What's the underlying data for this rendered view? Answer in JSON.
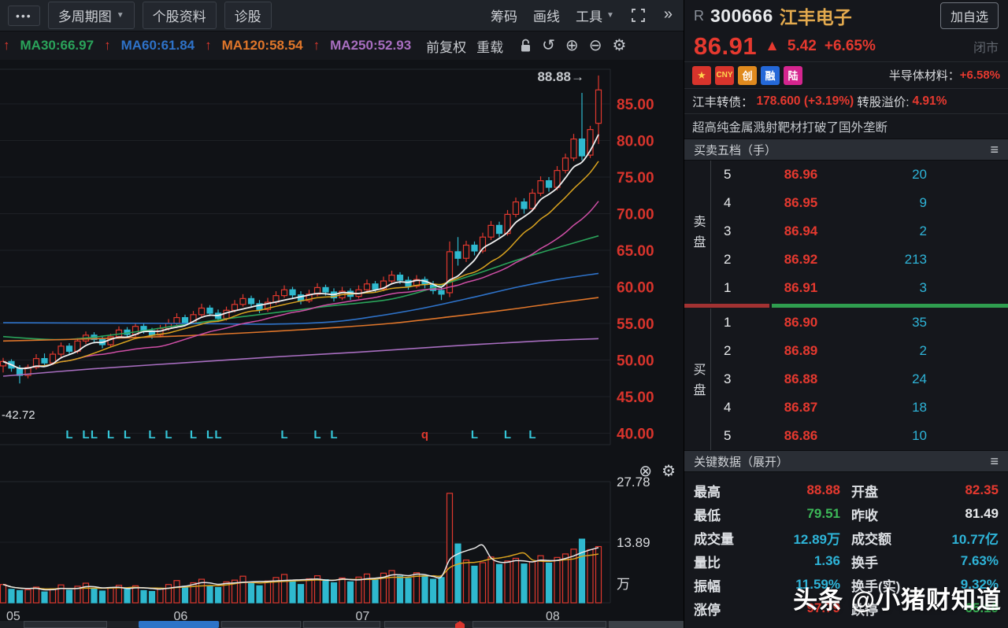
{
  "icons": {
    "dots": "•••",
    "caret": "▼",
    "chevrons": "»",
    "undo": "↺",
    "plus": "⊕",
    "minus": "⊖",
    "gear": "⚙",
    "close_circle": "⊗",
    "hamburger": "≡",
    "up_arrow": "↑",
    "tri_up": "▲",
    "star": "★"
  },
  "toolbar": {
    "menu_dots": "•••",
    "tabs": [
      {
        "label": "多周期图",
        "caret": true
      },
      {
        "label": "个股资料",
        "caret": false
      },
      {
        "label": "诊股",
        "caret": false
      }
    ],
    "right_tools": [
      {
        "label": "筹码",
        "caret": false
      },
      {
        "label": "画线",
        "caret": false
      },
      {
        "label": "工具",
        "caret": true
      }
    ]
  },
  "ma_bar": {
    "leading_arrow": "↑",
    "items": [
      {
        "label": "MA30:66.97",
        "color": "#2aa35a",
        "arrow": true
      },
      {
        "label": "MA60:61.84",
        "color": "#2e72c8",
        "arrow": true
      },
      {
        "label": "MA120:58.54",
        "color": "#e0762a",
        "arrow": true
      },
      {
        "label": "MA250:52.93",
        "color": "#a86ec0",
        "arrow": false
      }
    ],
    "buttons": [
      "前复权",
      "重载"
    ]
  },
  "quote": {
    "market_flag": "R",
    "code": "300666",
    "name": "江丰电子",
    "add_watchlist": "加自选",
    "price": "86.91",
    "change": "5.42",
    "change_pct": "+6.65%",
    "market_status": "闭市",
    "badges": [
      {
        "text": "★",
        "bg": "#d8342c",
        "fg": "#ffd34d"
      },
      {
        "text": "CNY",
        "bg": "#d8342c",
        "fg": "#ffd34d"
      },
      {
        "text": "创",
        "bg": "#e08a1e",
        "fg": "#ffffff"
      },
      {
        "text": "融",
        "bg": "#2468d8",
        "fg": "#ffffff"
      },
      {
        "text": "陆",
        "bg": "#d5258f",
        "fg": "#ffffff"
      }
    ],
    "sector_label": "半导体材料：",
    "sector_change": "+6.58%",
    "bond_label": "江丰转债：",
    "bond_value": "178.600 (+3.19%)",
    "premium_label": "转股溢价:",
    "premium_value": "4.91%",
    "news": "超高纯金属溅射靶材打破了国外垄断"
  },
  "order_book": {
    "title": "买卖五档（手）",
    "sell_label": "卖盘",
    "buy_label": "买盘",
    "sell": [
      {
        "level": "5",
        "price": "86.96",
        "qty": "20"
      },
      {
        "level": "4",
        "price": "86.95",
        "qty": "9"
      },
      {
        "level": "3",
        "price": "86.94",
        "qty": "2"
      },
      {
        "level": "2",
        "price": "86.92",
        "qty": "213"
      },
      {
        "level": "1",
        "price": "86.91",
        "qty": "3"
      }
    ],
    "buy": [
      {
        "level": "1",
        "price": "86.90",
        "qty": "35"
      },
      {
        "level": "2",
        "price": "86.89",
        "qty": "2"
      },
      {
        "level": "3",
        "price": "86.88",
        "qty": "24"
      },
      {
        "level": "4",
        "price": "86.87",
        "qty": "18"
      },
      {
        "level": "5",
        "price": "86.86",
        "qty": "10"
      }
    ],
    "depth": {
      "red_pct": 26.5,
      "green_pct": 73.5
    }
  },
  "key_data": {
    "title": "关键数据（展开）",
    "rows": [
      [
        {
          "label": "最高",
          "value": "88.88",
          "color": "red"
        },
        {
          "label": "开盘",
          "value": "82.35",
          "color": "red"
        }
      ],
      [
        {
          "label": "最低",
          "value": "79.51",
          "color": "green"
        },
        {
          "label": "昨收",
          "value": "81.49",
          "color": "white"
        }
      ],
      [
        {
          "label": "成交量",
          "value": "12.89万",
          "color": "cyan"
        },
        {
          "label": "成交额",
          "value": "10.77亿",
          "color": "cyan"
        }
      ],
      [
        {
          "label": "量比",
          "value": "1.36",
          "color": "cyan"
        },
        {
          "label": "换手",
          "value": "7.63%",
          "color": "cyan"
        }
      ],
      [
        {
          "label": "振幅",
          "value": "11.59%",
          "color": "cyan"
        },
        {
          "label": "换手(实)",
          "value": "9.32%",
          "color": "cyan"
        }
      ],
      [
        {
          "label": "涨停",
          "value": "97.79",
          "color": "red"
        },
        {
          "label": "跌停",
          "value": "65.19",
          "color": "green"
        }
      ]
    ]
  },
  "watermark": "头条 @小猪财知道",
  "chart_data": {
    "type": "candlestick",
    "title": "江丰电子 300666 日K线",
    "colors": {
      "up": "#e0382e",
      "down": "#2fb9cf"
    },
    "price_axis": {
      "ticks": [
        85,
        80,
        75,
        70,
        65,
        60,
        55,
        50,
        45,
        40
      ]
    },
    "high_annotation": "88.88→",
    "left_annotation": "-42.72",
    "months": [
      {
        "label": "05",
        "index": 0
      },
      {
        "label": "06",
        "index": 21
      },
      {
        "label": "07",
        "index": 43
      },
      {
        "label": "08",
        "index": 66
      }
    ],
    "candles": [
      [
        49.2,
        50.3,
        48.3,
        49.8,
        4.2
      ],
      [
        49.8,
        50.1,
        48.4,
        48.9,
        3.1
      ],
      [
        48.9,
        49.3,
        46.8,
        47.9,
        2.8
      ],
      [
        47.9,
        49.4,
        47.5,
        49.0,
        3.0
      ],
      [
        49.0,
        50.8,
        48.7,
        50.2,
        3.6
      ],
      [
        50.2,
        50.9,
        49.2,
        49.6,
        2.5
      ],
      [
        49.6,
        51.2,
        49.3,
        50.8,
        3.2
      ],
      [
        50.8,
        52.4,
        50.4,
        51.9,
        4.1
      ],
      [
        51.9,
        52.3,
        50.7,
        51.2,
        2.9
      ],
      [
        51.2,
        53.0,
        50.9,
        52.6,
        3.8
      ],
      [
        52.6,
        53.9,
        52.2,
        53.4,
        4.5
      ],
      [
        53.4,
        53.8,
        52.3,
        52.8,
        3.2
      ],
      [
        52.8,
        53.3,
        51.6,
        52.1,
        2.7
      ],
      [
        52.1,
        53.6,
        51.8,
        53.2,
        3.4
      ],
      [
        53.2,
        54.6,
        52.9,
        54.1,
        4.0
      ],
      [
        54.1,
        54.5,
        53.1,
        53.5,
        3.1
      ],
      [
        53.5,
        55.0,
        53.2,
        54.6,
        3.9
      ],
      [
        54.6,
        55.1,
        53.6,
        54.0,
        2.8
      ],
      [
        54.0,
        54.4,
        52.9,
        53.4,
        2.6
      ],
      [
        53.4,
        54.8,
        53.1,
        54.3,
        3.3
      ],
      [
        54.3,
        55.6,
        54.0,
        55.0,
        4.2
      ],
      [
        55.0,
        56.4,
        54.7,
        55.8,
        5.1
      ],
      [
        55.8,
        56.2,
        54.7,
        55.1,
        3.8
      ],
      [
        55.1,
        56.7,
        54.9,
        56.2,
        4.6
      ],
      [
        56.2,
        57.7,
        55.9,
        57.1,
        5.4
      ],
      [
        57.1,
        57.5,
        56.0,
        56.4,
        3.9
      ],
      [
        56.4,
        56.9,
        55.2,
        55.7,
        3.5
      ],
      [
        55.7,
        57.3,
        55.4,
        56.8,
        4.8
      ],
      [
        56.8,
        58.2,
        56.5,
        57.6,
        5.2
      ],
      [
        57.6,
        59.0,
        57.3,
        58.4,
        6.1
      ],
      [
        58.4,
        58.8,
        57.2,
        57.7,
        4.4
      ],
      [
        57.7,
        58.2,
        56.4,
        56.9,
        3.9
      ],
      [
        56.9,
        58.5,
        56.6,
        57.9,
        5.0
      ],
      [
        57.9,
        59.4,
        57.6,
        58.8,
        5.8
      ],
      [
        58.8,
        60.2,
        58.5,
        59.6,
        6.5
      ],
      [
        59.6,
        60.0,
        58.4,
        58.9,
        4.9
      ],
      [
        58.9,
        59.4,
        57.6,
        58.1,
        4.2
      ],
      [
        58.1,
        59.6,
        57.8,
        59.0,
        5.5
      ],
      [
        59.0,
        60.5,
        58.7,
        59.9,
        6.2
      ],
      [
        59.9,
        60.3,
        58.8,
        59.3,
        5.3
      ],
      [
        59.3,
        59.8,
        58.0,
        58.5,
        4.6
      ],
      [
        58.5,
        60.0,
        58.2,
        59.4,
        5.7
      ],
      [
        59.4,
        59.8,
        58.2,
        58.7,
        4.8
      ],
      [
        58.7,
        60.2,
        58.4,
        59.6,
        5.9
      ],
      [
        59.6,
        61.0,
        59.3,
        60.4,
        6.6
      ],
      [
        60.4,
        60.8,
        59.2,
        59.7,
        5.2
      ],
      [
        59.7,
        61.4,
        59.4,
        60.8,
        6.8
      ],
      [
        60.8,
        62.2,
        60.5,
        61.6,
        7.4
      ],
      [
        61.6,
        62.0,
        60.4,
        60.9,
        6.1
      ],
      [
        60.9,
        61.4,
        59.6,
        60.1,
        5.6
      ],
      [
        60.1,
        61.6,
        59.8,
        61.0,
        6.9
      ],
      [
        61.0,
        61.4,
        59.8,
        60.3,
        6.2
      ],
      [
        60.3,
        60.8,
        59.0,
        59.5,
        5.4
      ],
      [
        59.5,
        60.0,
        58.2,
        59.0,
        5.8
      ],
      [
        59.2,
        66.2,
        58.6,
        64.8,
        25.1
      ],
      [
        64.8,
        66.8,
        62.9,
        63.9,
        13.5
      ],
      [
        63.9,
        66.3,
        63.4,
        65.7,
        9.8
      ],
      [
        65.7,
        66.2,
        64.3,
        64.9,
        8.4
      ],
      [
        64.9,
        67.4,
        64.6,
        66.8,
        9.2
      ],
      [
        66.8,
        69.0,
        66.4,
        68.4,
        10.5
      ],
      [
        68.4,
        68.9,
        66.8,
        67.3,
        8.8
      ],
      [
        67.3,
        70.5,
        67.0,
        69.9,
        9.6
      ],
      [
        69.9,
        72.2,
        69.5,
        71.6,
        10.2
      ],
      [
        71.6,
        72.1,
        70.0,
        70.7,
        8.9
      ],
      [
        70.7,
        73.4,
        70.3,
        72.8,
        9.4
      ],
      [
        72.8,
        75.1,
        72.4,
        74.5,
        10.8
      ],
      [
        74.5,
        75.0,
        73.0,
        73.6,
        9.1
      ],
      [
        73.6,
        76.5,
        73.2,
        75.9,
        10.4
      ],
      [
        75.9,
        78.2,
        75.5,
        77.6,
        11.2
      ],
      [
        77.6,
        80.9,
        77.2,
        80.2,
        12.3
      ],
      [
        80.2,
        86.5,
        77.3,
        77.9,
        14.6
      ],
      [
        78.0,
        82.0,
        77.6,
        81.49,
        12.2
      ],
      [
        82.35,
        88.88,
        79.51,
        86.91,
        12.89
      ]
    ],
    "computed_mas": [
      {
        "window": 20,
        "color": "#cf4fa6",
        "width": 1.5
      },
      {
        "window": 10,
        "color": "#d9a31f",
        "width": 1.5
      },
      {
        "window": 5,
        "color": "#f0f0f0",
        "width": 1.8
      }
    ],
    "overlays": [
      {
        "name": "MA30",
        "color": "#2aa35a",
        "points": [
          [
            0,
            53.2
          ],
          [
            0.1,
            52.8
          ],
          [
            0.2,
            53.6
          ],
          [
            0.3,
            54.8
          ],
          [
            0.4,
            55.9
          ],
          [
            0.5,
            56.9
          ],
          [
            0.55,
            57.4
          ],
          [
            0.6,
            57.8
          ],
          [
            0.65,
            58.3
          ],
          [
            0.7,
            59.3
          ],
          [
            0.75,
            60.6
          ],
          [
            0.8,
            61.9
          ],
          [
            0.85,
            63.3
          ],
          [
            0.9,
            64.6
          ],
          [
            0.95,
            65.8
          ],
          [
            1,
            66.97
          ]
        ]
      },
      {
        "name": "MA60",
        "color": "#2e72c8",
        "points": [
          [
            0,
            55.1
          ],
          [
            0.3,
            55.0
          ],
          [
            0.45,
            54.9
          ],
          [
            0.55,
            55.2
          ],
          [
            0.62,
            55.9
          ],
          [
            0.7,
            57.0
          ],
          [
            0.78,
            58.4
          ],
          [
            0.86,
            59.9
          ],
          [
            0.93,
            61.0
          ],
          [
            1,
            61.84
          ]
        ]
      },
      {
        "name": "MA120",
        "color": "#e0762a",
        "points": [
          [
            0,
            52.6
          ],
          [
            0.15,
            52.9
          ],
          [
            0.3,
            53.3
          ],
          [
            0.45,
            53.9
          ],
          [
            0.55,
            54.4
          ],
          [
            0.65,
            55.0
          ],
          [
            0.75,
            55.9
          ],
          [
            0.85,
            56.9
          ],
          [
            0.93,
            57.8
          ],
          [
            1,
            58.54
          ]
        ]
      },
      {
        "name": "MA250",
        "color": "#a86ec0",
        "points": [
          [
            0,
            47.8
          ],
          [
            0.15,
            48.8
          ],
          [
            0.3,
            49.6
          ],
          [
            0.45,
            50.4
          ],
          [
            0.6,
            51.1
          ],
          [
            0.75,
            51.9
          ],
          [
            0.9,
            52.6
          ],
          [
            1,
            52.93
          ]
        ]
      }
    ],
    "markers": {
      "L_color": "#35c6d8",
      "q_color": "#e0382e",
      "items": [
        {
          "i": 8,
          "t": "L"
        },
        {
          "i": 10,
          "t": "L"
        },
        {
          "i": 11,
          "t": "L"
        },
        {
          "i": 13,
          "t": "L"
        },
        {
          "i": 15,
          "t": "L"
        },
        {
          "i": 18,
          "t": "L"
        },
        {
          "i": 20,
          "t": "L"
        },
        {
          "i": 23,
          "t": "L"
        },
        {
          "i": 25,
          "t": "L"
        },
        {
          "i": 26,
          "t": "L"
        },
        {
          "i": 34,
          "t": "L"
        },
        {
          "i": 38,
          "t": "L"
        },
        {
          "i": 40,
          "t": "L"
        },
        {
          "i": 51,
          "t": "q"
        },
        {
          "i": 57,
          "t": "L"
        },
        {
          "i": 61,
          "t": "L"
        },
        {
          "i": 64,
          "t": "L"
        }
      ]
    },
    "volume_axis": {
      "ticks": [
        {
          "label": "27.78",
          "v": 27.78
        },
        {
          "label": "13.89",
          "v": 13.89
        }
      ],
      "unit": "万"
    },
    "volume_mas": [
      {
        "window": 10,
        "color": "#d9a31f",
        "width": 1.5
      },
      {
        "window": 5,
        "color": "#e8e8e8",
        "width": 1.5
      }
    ]
  }
}
